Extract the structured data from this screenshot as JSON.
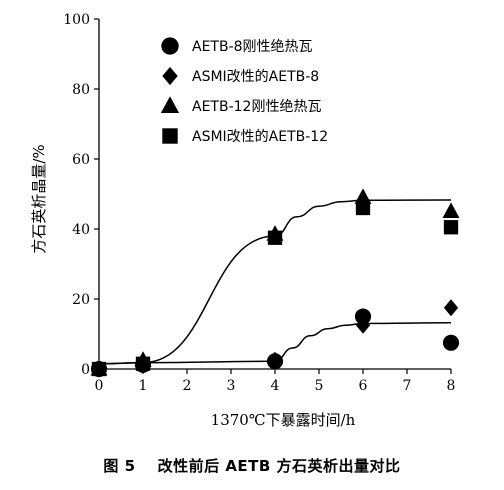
{
  "caption": {
    "figure_no": "图 5",
    "text": "改性前后 AETB 方石英析出量对比"
  },
  "chart_data": {
    "type": "scatter",
    "title": "",
    "xlabel": "1370℃下暴露时间/h",
    "ylabel": "方石英析晶量/%",
    "xlim": [
      0,
      8
    ],
    "ylim": [
      0,
      100
    ],
    "x_ticks": [
      "0",
      "1",
      "2",
      "3",
      "4",
      "5",
      "6",
      "7",
      "8"
    ],
    "y_ticks": [
      "0",
      "20",
      "40",
      "60",
      "80",
      "100"
    ],
    "legend_position": "top-right",
    "series": [
      {
        "name": "AETB-8刚性绝热瓦",
        "marker": "circle",
        "color": "#000000",
        "x": [
          0,
          1,
          4,
          6,
          8
        ],
        "y": [
          0,
          1.2,
          2.2,
          15,
          7.5
        ]
      },
      {
        "name": "ASMI改性的AETB-8",
        "marker": "diamond",
        "color": "#000000",
        "x": [
          0,
          1,
          4,
          6,
          8
        ],
        "y": [
          0,
          2,
          2.5,
          12.5,
          17.5
        ]
      },
      {
        "name": "AETB-12刚性绝热瓦",
        "marker": "triangle",
        "color": "#000000",
        "x": [
          0,
          1,
          4,
          6,
          8
        ],
        "y": [
          0,
          2.5,
          38.5,
          49,
          45
        ]
      },
      {
        "name": "ASMI改性的AETB-12",
        "marker": "square",
        "color": "#000000",
        "x": [
          0,
          1,
          4,
          6,
          8
        ],
        "y": [
          0,
          1.5,
          37.5,
          46,
          40.5
        ]
      }
    ],
    "trend_lines": [
      {
        "x": [
          0,
          1,
          4,
          4.4,
          4.8,
          5.2,
          5.6,
          6,
          8
        ],
        "y": [
          1.5,
          1.8,
          2.2,
          6,
          9.5,
          11.5,
          12.5,
          13,
          13.2
        ]
      },
      {
        "x": [
          0,
          1,
          4,
          4.5,
          5,
          5.5,
          6,
          8
        ],
        "y": [
          1.5,
          1.8,
          38,
          43.5,
          46.5,
          47.8,
          48.2,
          48.3
        ]
      }
    ]
  }
}
